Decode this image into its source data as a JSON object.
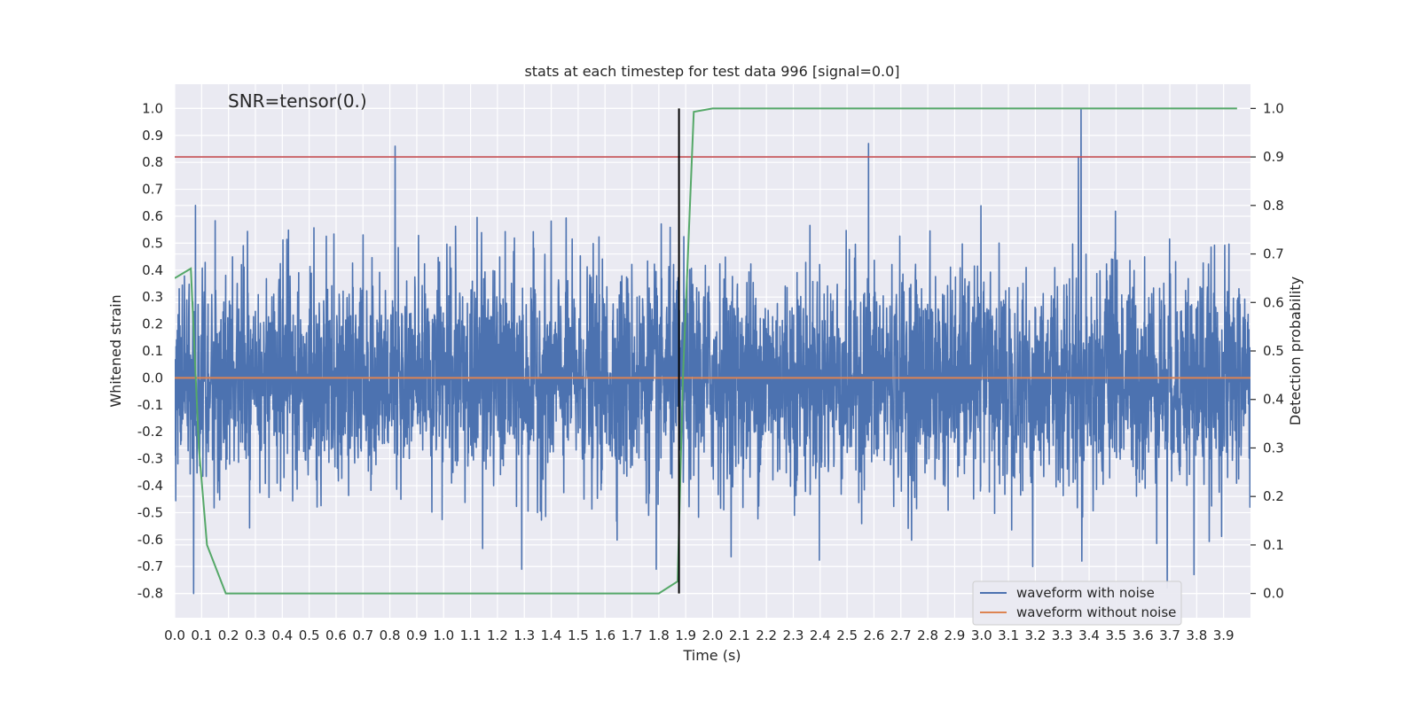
{
  "chart_data": {
    "type": "line",
    "title": "stats at each timestep for test data 996 [signal=0.0]",
    "annotation": "SNR=tensor(0.)",
    "xlabel": "Time (s)",
    "ylabel": "Whitened strain",
    "y2label": "Detection probability",
    "xlim": [
      0.0,
      4.0
    ],
    "ylim": [
      -0.89,
      1.09
    ],
    "y2lim": [
      -0.05,
      1.05
    ],
    "xticks": [
      "0.0",
      "0.1",
      "0.2",
      "0.3",
      "0.4",
      "0.5",
      "0.6",
      "0.7",
      "0.8",
      "0.9",
      "1.0",
      "1.1",
      "1.2",
      "1.3",
      "1.4",
      "1.5",
      "1.6",
      "1.7",
      "1.8",
      "1.9",
      "2.0",
      "2.1",
      "2.2",
      "2.3",
      "2.4",
      "2.5",
      "2.6",
      "2.7",
      "2.8",
      "2.9",
      "3.0",
      "3.1",
      "3.2",
      "3.3",
      "3.4",
      "3.5",
      "3.6",
      "3.7",
      "3.8",
      "3.9"
    ],
    "yticks": [
      "1.0",
      "0.9",
      "0.8",
      "0.7",
      "0.6",
      "0.5",
      "0.4",
      "0.3",
      "0.2",
      "0.1",
      "0.0",
      "-0.1",
      "-0.2",
      "-0.3",
      "-0.4",
      "-0.5",
      "-0.6",
      "-0.7",
      "-0.8"
    ],
    "y2ticks": [
      "1.0",
      "0.9",
      "0.8",
      "0.7",
      "0.6",
      "0.5",
      "0.4",
      "0.3",
      "0.2",
      "0.1",
      "0.0"
    ],
    "grid": true,
    "legend_position": "bottom-right",
    "series": [
      {
        "name": "waveform with noise",
        "color": "#4c72b0",
        "axis": "left",
        "noise": true,
        "spikes": [
          [
            0.82,
            0.86
          ],
          [
            2.58,
            0.87
          ],
          [
            3.37,
            1.0
          ],
          [
            3.36,
            0.82
          ],
          [
            0.07,
            -0.8
          ],
          [
            3.69,
            -0.78
          ],
          [
            3.79,
            -0.73
          ],
          [
            1.29,
            -0.71
          ],
          [
            3.19,
            -0.7
          ],
          [
            1.79,
            -0.71
          ]
        ]
      },
      {
        "name": "waveform without noise",
        "color": "#dd8452",
        "axis": "left",
        "x": [
          0.0,
          4.0
        ],
        "y": [
          0.0,
          0.0
        ]
      },
      {
        "name": "",
        "color": "#55a868",
        "axis": "right",
        "x": [
          0.0,
          0.06,
          0.09,
          0.12,
          0.19,
          0.24,
          1.8,
          1.87,
          1.89,
          1.93,
          2.0,
          3.95
        ],
        "y": [
          0.65,
          0.67,
          0.3,
          0.1,
          0.0,
          0.0,
          0.0,
          0.025,
          0.45,
          0.993,
          1.0,
          1.0
        ]
      }
    ],
    "threshold": {
      "color": "#c44e52",
      "y2": 0.9
    },
    "event_marker": {
      "color": "#000000",
      "x": 1.875,
      "y": [
        -0.8,
        1.0
      ]
    }
  }
}
